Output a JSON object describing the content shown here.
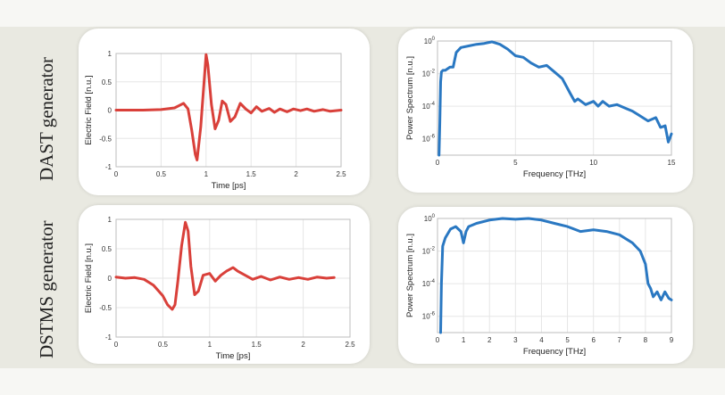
{
  "row_labels": [
    "DAST generator",
    "DSTMS generator"
  ],
  "colors": {
    "time_trace": "#d9403a",
    "spectrum_trace": "#2a78c2"
  },
  "chart_data": [
    {
      "type": "line",
      "ylabel": "Electric Field [n.u.]",
      "xlabel": "Time [ps]",
      "xlim": [
        0,
        2.5
      ],
      "ylim": [
        -1,
        1
      ],
      "x_ticks": [
        "0",
        "0.5",
        "1",
        "1.5",
        "2",
        "2.5"
      ],
      "y_ticks": [
        "1",
        "0.5",
        "0",
        "-0.5",
        "-1"
      ],
      "grid": true,
      "series": [
        {
          "color": "#d9403a",
          "x": [
            0,
            0.3,
            0.5,
            0.65,
            0.7,
            0.75,
            0.8,
            0.84,
            0.88,
            0.9,
            0.94,
            0.98,
            1.0,
            1.02,
            1.06,
            1.1,
            1.14,
            1.18,
            1.22,
            1.27,
            1.32,
            1.38,
            1.44,
            1.5,
            1.56,
            1.62,
            1.7,
            1.76,
            1.82,
            1.9,
            1.97,
            2.05,
            2.12,
            2.2,
            2.3,
            2.38,
            2.5
          ],
          "y": [
            0,
            0,
            0.01,
            0.04,
            0.08,
            0.12,
            0.02,
            -0.35,
            -0.78,
            -0.88,
            -0.3,
            0.55,
            0.98,
            0.8,
            0.1,
            -0.33,
            -0.18,
            0.16,
            0.1,
            -0.2,
            -0.12,
            0.12,
            0.02,
            -0.05,
            0.06,
            -0.02,
            0.03,
            -0.04,
            0.02,
            -0.03,
            0.02,
            -0.01,
            0.02,
            -0.02,
            0.01,
            -0.02,
            0.0
          ]
        }
      ]
    },
    {
      "type": "line",
      "ylabel": "Power Spectrum [n.u.]",
      "xlabel": "Frequency [THz]",
      "xlim": [
        0,
        15
      ],
      "ylim": [
        -7,
        0
      ],
      "yscale": "log",
      "x_ticks": [
        "0",
        "5",
        "10",
        "15"
      ],
      "y_ticks": [
        "10^0",
        "10^-2",
        "10^-4",
        "10^-6"
      ],
      "grid": true,
      "series": [
        {
          "color": "#2a78c2",
          "x": [
            0.1,
            0.15,
            0.2,
            0.25,
            0.35,
            0.5,
            0.8,
            1.0,
            1.2,
            1.5,
            2.0,
            2.5,
            3.0,
            3.5,
            4.0,
            4.5,
            5.0,
            5.5,
            6.0,
            6.5,
            7.0,
            7.5,
            8.0,
            8.5,
            8.8,
            9.0,
            9.5,
            10.0,
            10.3,
            10.6,
            11.0,
            11.5,
            12.0,
            12.5,
            13.0,
            13.5,
            14.0,
            14.3,
            14.6,
            14.8,
            15.0
          ],
          "y": [
            -7,
            -5,
            -2.5,
            -1.9,
            -1.8,
            -1.8,
            -1.6,
            -1.6,
            -0.7,
            -0.4,
            -0.3,
            -0.2,
            -0.15,
            -0.05,
            -0.2,
            -0.5,
            -0.9,
            -1.0,
            -1.35,
            -1.6,
            -1.5,
            -1.9,
            -2.3,
            -3.2,
            -3.7,
            -3.55,
            -3.9,
            -3.7,
            -4.0,
            -3.7,
            -4.0,
            -3.9,
            -4.1,
            -4.3,
            -4.6,
            -4.9,
            -4.7,
            -5.3,
            -5.2,
            -6.2,
            -5.7
          ]
        }
      ]
    },
    {
      "type": "line",
      "ylabel": "Electric Field [n.u.]",
      "xlabel": "Time [ps]",
      "xlim": [
        0,
        2.5
      ],
      "ylim": [
        -1,
        1
      ],
      "x_ticks": [
        "0",
        "0.5",
        "1",
        "1.5",
        "2",
        "2.5"
      ],
      "y_ticks": [
        "1",
        "0.5",
        "0",
        "-0.5",
        "-1"
      ],
      "grid": true,
      "series": [
        {
          "color": "#d9403a",
          "x": [
            0,
            0.1,
            0.2,
            0.3,
            0.4,
            0.5,
            0.55,
            0.6,
            0.63,
            0.66,
            0.7,
            0.74,
            0.77,
            0.8,
            0.84,
            0.88,
            0.93,
            1.0,
            1.06,
            1.12,
            1.18,
            1.25,
            1.3,
            1.38,
            1.46,
            1.55,
            1.65,
            1.75,
            1.85,
            1.95,
            2.05,
            2.15,
            2.25,
            2.33
          ],
          "y": [
            0.02,
            0.0,
            0.01,
            -0.02,
            -0.12,
            -0.3,
            -0.45,
            -0.53,
            -0.45,
            -0.05,
            0.55,
            0.95,
            0.8,
            0.2,
            -0.28,
            -0.22,
            0.05,
            0.08,
            -0.05,
            0.05,
            0.12,
            0.18,
            0.12,
            0.05,
            -0.02,
            0.03,
            -0.03,
            0.02,
            -0.02,
            0.01,
            -0.02,
            0.02,
            0.0,
            0.01
          ]
        }
      ]
    },
    {
      "type": "line",
      "ylabel": "Power Spectrum [n.u.]",
      "xlabel": "Frequency [THz]",
      "xlim": [
        0,
        9
      ],
      "ylim": [
        -7,
        0
      ],
      "yscale": "log",
      "x_ticks": [
        "0",
        "1",
        "2",
        "3",
        "4",
        "5",
        "6",
        "7",
        "8",
        "9"
      ],
      "y_ticks": [
        "10^0",
        "10^-2",
        "10^-4",
        "10^-6"
      ],
      "grid": true,
      "series": [
        {
          "color": "#2a78c2",
          "x": [
            0.12,
            0.15,
            0.2,
            0.3,
            0.5,
            0.7,
            0.9,
            1.0,
            1.1,
            1.2,
            1.5,
            2.0,
            2.5,
            3.0,
            3.5,
            4.0,
            4.5,
            5.0,
            5.5,
            6.0,
            6.5,
            7.0,
            7.5,
            7.8,
            8.0,
            8.1,
            8.2,
            8.3,
            8.45,
            8.6,
            8.75,
            8.9,
            9.0
          ],
          "y": [
            -7,
            -4,
            -1.7,
            -1.2,
            -0.65,
            -0.5,
            -0.8,
            -1.5,
            -0.8,
            -0.5,
            -0.3,
            -0.1,
            0.0,
            -0.05,
            0.0,
            -0.1,
            -0.3,
            -0.5,
            -0.8,
            -0.7,
            -0.8,
            -1.0,
            -1.5,
            -2.0,
            -2.8,
            -4.0,
            -4.3,
            -4.8,
            -4.5,
            -5.0,
            -4.5,
            -4.9,
            -5.0
          ]
        }
      ]
    }
  ]
}
